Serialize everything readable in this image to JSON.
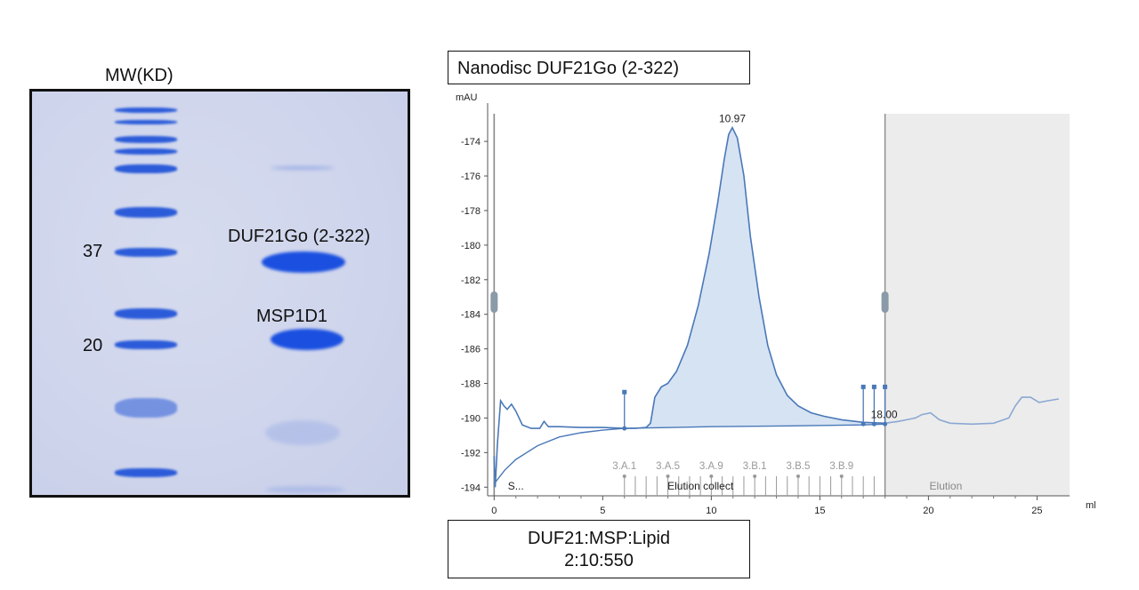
{
  "gel": {
    "header": "MW(KD)",
    "mw_markers": [
      "37",
      "20"
    ],
    "band_labels": [
      "DUF21Go (2-322)",
      "MSP1D1"
    ]
  },
  "chromatogram": {
    "title": "Nanodisc DUF21Go (2-322)",
    "condition_line1": "DUF21:MSP:Lipid",
    "condition_line2": "2:10:550"
  },
  "chart_data": {
    "type": "line",
    "ylabel": "mAU",
    "xlabel": "ml",
    "xlim": [
      -0.3,
      26.5
    ],
    "ylim": [
      -194.5,
      -172.4
    ],
    "xticks": [
      0,
      5,
      10,
      15,
      20,
      25
    ],
    "yticks": [
      -194,
      -192,
      -190,
      -188,
      -186,
      -184,
      -182,
      -180,
      -178,
      -176,
      -174
    ],
    "series": [
      {
        "values": [
          [
            0,
            -192.2
          ],
          [
            0.05,
            -194
          ],
          [
            0.15,
            -191.5
          ],
          [
            0.3,
            -189
          ],
          [
            0.45,
            -189.3
          ],
          [
            0.6,
            -189.5
          ],
          [
            0.8,
            -189.2
          ],
          [
            1.0,
            -189.6
          ],
          [
            1.3,
            -190.4
          ],
          [
            1.7,
            -190.6
          ],
          [
            2.1,
            -190.6
          ],
          [
            2.3,
            -190.2
          ],
          [
            2.5,
            -190.5
          ],
          [
            3,
            -190.5
          ],
          [
            4,
            -190.55
          ],
          [
            5,
            -190.55
          ],
          [
            6,
            -190.6
          ],
          [
            6.5,
            -190.6
          ],
          [
            7,
            -190.55
          ],
          [
            7.2,
            -190.3
          ],
          [
            7.4,
            -188.8
          ],
          [
            7.7,
            -188.2
          ],
          [
            8,
            -188
          ],
          [
            8.4,
            -187.3
          ],
          [
            8.9,
            -185.8
          ],
          [
            9.4,
            -183.5
          ],
          [
            9.9,
            -180.5
          ],
          [
            10.3,
            -177.5
          ],
          [
            10.6,
            -175
          ],
          [
            10.8,
            -173.6
          ],
          [
            10.97,
            -173.2
          ],
          [
            11.2,
            -173.8
          ],
          [
            11.5,
            -176
          ],
          [
            11.8,
            -179.5
          ],
          [
            12.2,
            -183
          ],
          [
            12.6,
            -185.8
          ],
          [
            13,
            -187.5
          ],
          [
            13.5,
            -188.7
          ],
          [
            14,
            -189.3
          ],
          [
            14.6,
            -189.7
          ],
          [
            15.2,
            -189.9
          ],
          [
            16,
            -190.1
          ],
          [
            17,
            -190.25
          ],
          [
            18,
            -190.3
          ],
          [
            18.6,
            -190.2
          ],
          [
            19,
            -190.1
          ],
          [
            19.4,
            -190.0
          ],
          [
            19.7,
            -189.8
          ],
          [
            20.1,
            -189.7
          ],
          [
            20.5,
            -190.1
          ],
          [
            21,
            -190.3
          ],
          [
            22,
            -190.35
          ],
          [
            23,
            -190.3
          ],
          [
            23.7,
            -190.0
          ],
          [
            24,
            -189.3
          ],
          [
            24.3,
            -188.8
          ],
          [
            24.7,
            -188.8
          ],
          [
            25.1,
            -189.1
          ],
          [
            25.5,
            -189.0
          ],
          [
            26,
            -188.9
          ]
        ]
      }
    ],
    "baseline": [
      [
        0,
        -193.8
      ],
      [
        0.5,
        -193.0
      ],
      [
        1,
        -192.4
      ],
      [
        2,
        -191.6
      ],
      [
        3,
        -191.1
      ],
      [
        4,
        -190.85
      ],
      [
        5,
        -190.7
      ],
      [
        6,
        -190.6
      ],
      [
        10,
        -190.5
      ],
      [
        14,
        -190.45
      ],
      [
        17,
        -190.4
      ],
      [
        18,
        -190.35
      ]
    ],
    "peak_label": "10.97",
    "peak": [
      10.97,
      -173.2
    ],
    "integration_end_label": "18.00",
    "integration_end": [
      18.0,
      -190.3
    ],
    "fraction_labels": [
      "3.A.1",
      "3.A.5",
      "3.A.9",
      "3.B.1",
      "3.B.5",
      "3.B.9"
    ],
    "fraction_positions": [
      6,
      8,
      10,
      12,
      14,
      16
    ],
    "phase_labels": [
      "S...",
      "Elution collect",
      "Elution"
    ],
    "phase_positions": [
      1.0,
      9.5,
      20.8
    ],
    "shaded_region": [
      18.0,
      26.5
    ]
  }
}
